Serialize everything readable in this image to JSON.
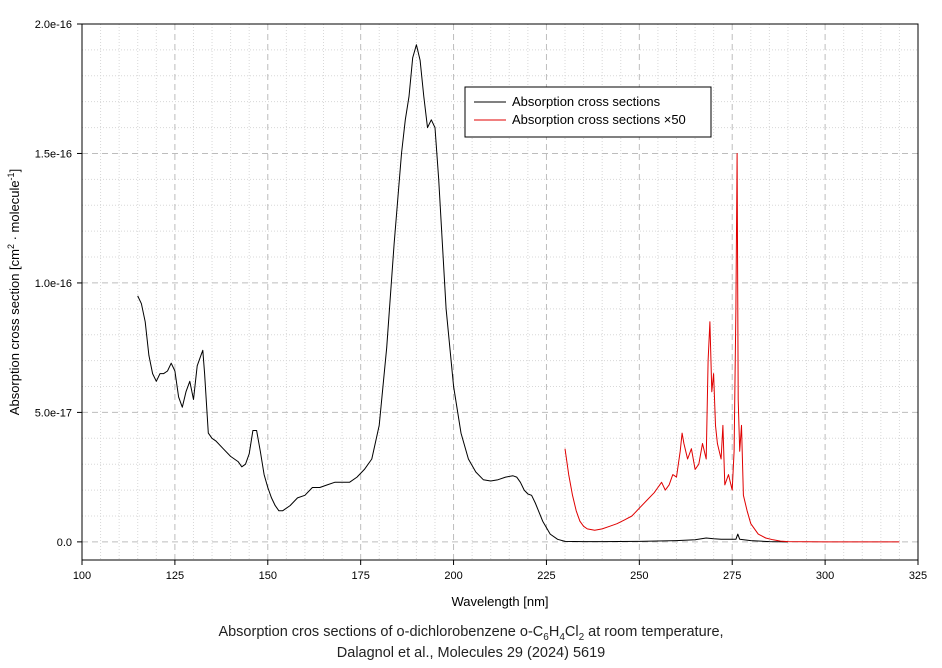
{
  "chart_data": {
    "type": "line",
    "xlabel": "Wavelength [nm]",
    "ylabel_main": "Absorption cross section [cm",
    "ylabel_mid": " · molecule",
    "ylabel_end": "]",
    "ylabel_sup1": "2",
    "ylabel_sup2": "-1",
    "xlim": [
      100,
      325
    ],
    "ylim": [
      -7e-18,
      2e-16
    ],
    "x_ticks": [
      100,
      125,
      150,
      175,
      200,
      225,
      250,
      275,
      300,
      325
    ],
    "x_tick_labels": [
      "100",
      "125",
      "150",
      "175",
      "200",
      "225",
      "250",
      "275",
      "300",
      "325"
    ],
    "y_ticks": [
      0,
      5e-17,
      1e-16,
      1.5e-16,
      2e-16
    ],
    "y_tick_labels": [
      "0.0",
      "5.0e-17",
      "1.0e-16",
      "1.5e-16",
      "2.0e-16"
    ],
    "grid": true,
    "legend_position": "top-right",
    "series": [
      {
        "name": "Absorption cross sections",
        "color": "#000000",
        "x": [
          115,
          116,
          117,
          118,
          119,
          120,
          121,
          122,
          123,
          124,
          125,
          126,
          127,
          128,
          129,
          130,
          131,
          132,
          132.5,
          133,
          134,
          135,
          136,
          138,
          140,
          142,
          143,
          144,
          145,
          146,
          147,
          148,
          149,
          150,
          151,
          152,
          153,
          154,
          156,
          158,
          160,
          162,
          164,
          166,
          168,
          170,
          172,
          174,
          176,
          178,
          180,
          182,
          184,
          186,
          187,
          188,
          189,
          190,
          191,
          192,
          193,
          194,
          195,
          196,
          197,
          198,
          200,
          202,
          204,
          206,
          208,
          210,
          212,
          214,
          216,
          217,
          218,
          219,
          220,
          221,
          222,
          224,
          226,
          228,
          230,
          235,
          240,
          250,
          260,
          265,
          268,
          270,
          272,
          274,
          276,
          276.5,
          277,
          280,
          285,
          290
        ],
        "y": [
          9.5e-17,
          9.2e-17,
          8.5e-17,
          7.2e-17,
          6.5e-17,
          6.2e-17,
          6.5e-17,
          6.5e-17,
          6.6e-17,
          6.9e-17,
          6.6e-17,
          5.6e-17,
          5.2e-17,
          5.8e-17,
          6.2e-17,
          5.5e-17,
          6.8e-17,
          7.2e-17,
          7.4e-17,
          6.5e-17,
          4.2e-17,
          4e-17,
          3.9e-17,
          3.6e-17,
          3.3e-17,
          3.1e-17,
          2.9e-17,
          3e-17,
          3.4e-17,
          4.3e-17,
          4.3e-17,
          3.5e-17,
          2.6e-17,
          2.1e-17,
          1.7e-17,
          1.4e-17,
          1.2e-17,
          1.2e-17,
          1.4e-17,
          1.7e-17,
          1.8e-17,
          2.1e-17,
          2.1e-17,
          2.2e-17,
          2.3e-17,
          2.3e-17,
          2.3e-17,
          2.5e-17,
          2.8e-17,
          3.2e-17,
          4.5e-17,
          7.5e-17,
          1.15e-16,
          1.5e-16,
          1.63e-16,
          1.72e-16,
          1.87e-16,
          1.92e-16,
          1.86e-16,
          1.72e-16,
          1.6e-16,
          1.63e-16,
          1.6e-16,
          1.4e-16,
          1.15e-16,
          9e-17,
          6e-17,
          4.2e-17,
          3.2e-17,
          2.7e-17,
          2.4e-17,
          2.35e-17,
          2.4e-17,
          2.5e-17,
          2.55e-17,
          2.5e-17,
          2.3e-17,
          2e-17,
          1.85e-17,
          1.8e-17,
          1.5e-17,
          8e-18,
          3e-18,
          1e-18,
          2e-19,
          1e-19,
          1e-19,
          2e-19,
          5e-19,
          8e-19,
          1.5e-18,
          1.2e-18,
          1e-18,
          1e-18,
          1e-18,
          3e-18,
          1e-18,
          5e-19,
          1e-19,
          0
        ]
      },
      {
        "name": "Absorption cross sections ×50",
        "color": "#e00000",
        "x": [
          230,
          231,
          232,
          233,
          234,
          235,
          236,
          238,
          240,
          242,
          244,
          246,
          248,
          250,
          252,
          254,
          255,
          256,
          257,
          258,
          259,
          260,
          261,
          261.5,
          262,
          263,
          264,
          265,
          266,
          267,
          268,
          268.5,
          269,
          269.5,
          270,
          270.5,
          271,
          272,
          272.5,
          273,
          274,
          275,
          275.5,
          276,
          276.3,
          276.6,
          277,
          277.5,
          278,
          279,
          280,
          282,
          284,
          286,
          288,
          290,
          300,
          310,
          320
        ],
        "y": [
          3.6e-17,
          2.6e-17,
          1.8e-17,
          1.2e-17,
          8e-18,
          6e-18,
          5e-18,
          4.5e-18,
          5e-18,
          6e-18,
          7e-18,
          8.5e-18,
          1e-17,
          1.3e-17,
          1.6e-17,
          1.9e-17,
          2.1e-17,
          2.3e-17,
          2e-17,
          2.2e-17,
          2.6e-17,
          2.5e-17,
          3.5e-17,
          4.2e-17,
          3.8e-17,
          3.2e-17,
          3.6e-17,
          2.8e-17,
          3e-17,
          3.8e-17,
          3.2e-17,
          7e-17,
          8.5e-17,
          5.8e-17,
          6.5e-17,
          4.5e-17,
          3.8e-17,
          3.2e-17,
          4.5e-17,
          2.2e-17,
          2.6e-17,
          2e-17,
          3.5e-17,
          9e-17,
          1.5e-16,
          5.5e-17,
          3.5e-17,
          4.5e-17,
          1.8e-17,
          1.2e-17,
          7e-18,
          3e-18,
          1.5e-18,
          8e-19,
          3e-19,
          1e-19,
          0,
          0,
          0
        ]
      }
    ]
  },
  "caption": {
    "line1_part1": "Absorption cros sections of o-dichlorobenzene o-C",
    "line1_sub1": "6",
    "line1_part2": "H",
    "line1_sub2": "4",
    "line1_part3": "Cl",
    "line1_sub3": "2",
    "line1_part4": " at room temperature,",
    "line2": "Dalagnol et al., Molecules 29 (2024) 5619"
  }
}
